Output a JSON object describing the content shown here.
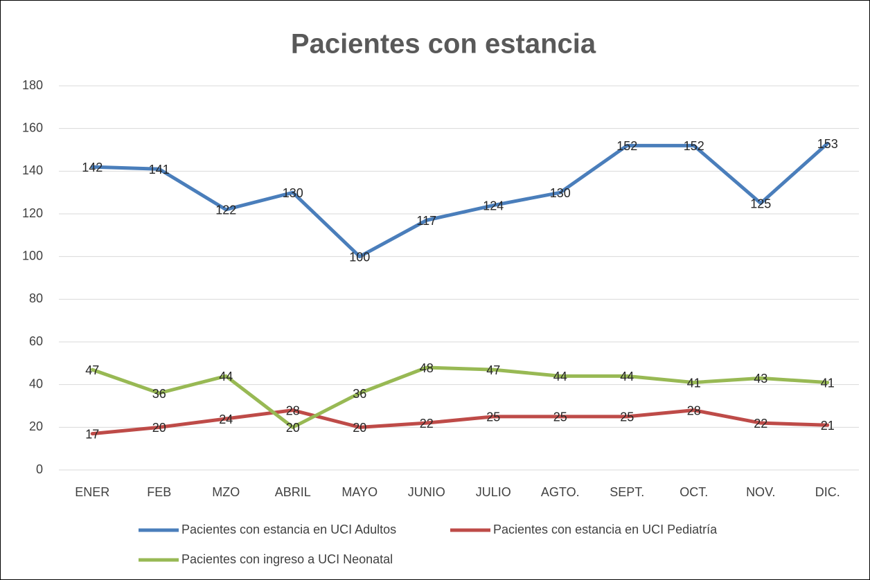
{
  "chart_data": {
    "type": "line",
    "title": "Pacientes con estancia",
    "categories": [
      "ENER",
      "FEB",
      "MZO",
      "ABRIL",
      "MAYO",
      "JUNIO",
      "JULIO",
      "AGTO.",
      "SEPT.",
      "OCT.",
      "NOV.",
      "DIC."
    ],
    "series": [
      {
        "name": "Pacientes con estancia en UCI Adultos",
        "color": "#4a7ebb",
        "values": [
          142,
          141,
          122,
          130,
          100,
          117,
          124,
          130,
          152,
          152,
          125,
          153
        ]
      },
      {
        "name": "Pacientes con estancia en UCI Pediatría",
        "color": "#be4b48",
        "values": [
          17,
          20,
          24,
          28,
          20,
          22,
          25,
          25,
          25,
          28,
          22,
          21
        ]
      },
      {
        "name": "Pacientes con ingreso a UCI Neonatal",
        "color": "#98b954",
        "values": [
          47,
          36,
          44,
          20,
          36,
          48,
          47,
          44,
          44,
          41,
          43,
          41
        ]
      }
    ],
    "ylim": [
      0,
      180
    ],
    "yticks": [
      0,
      20,
      40,
      60,
      80,
      100,
      120,
      140,
      160,
      180
    ],
    "grid": true,
    "legend": "bottom"
  }
}
